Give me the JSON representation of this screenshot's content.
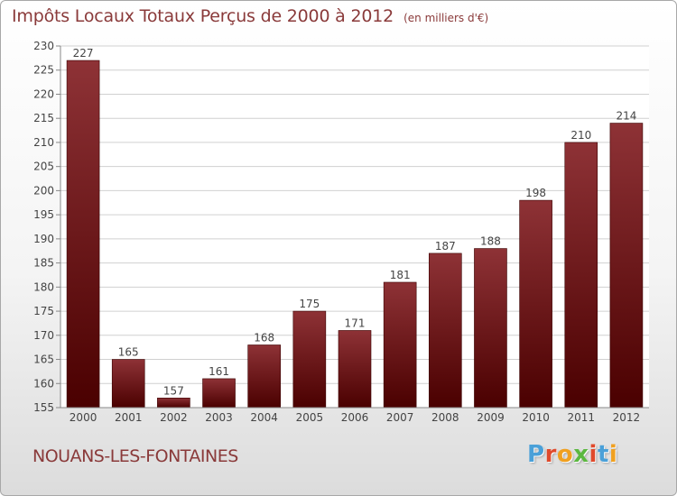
{
  "header": {
    "title": "Impôts Locaux Totaux Perçus de 2000 à 2012",
    "subtitle": "(en milliers d'€)"
  },
  "footer": {
    "commune": "NOUANS-LES-FONTAINES",
    "logo_text": "Proxiti"
  },
  "colors": {
    "title": "#8a3a3a",
    "bar_top": "#8e3236",
    "bar_bottom": "#4a0000",
    "grid": "#d0d0d0",
    "logo_letters": [
      "#4aa0d8",
      "#e04a2c",
      "#f0a020",
      "#5bb840",
      "#e04a2c",
      "#4aa0d8",
      "#f0a020"
    ]
  },
  "chart_data": {
    "type": "bar",
    "categories": [
      "2000",
      "2001",
      "2002",
      "2003",
      "2004",
      "2005",
      "2006",
      "2007",
      "2008",
      "2009",
      "2010",
      "2011",
      "2012"
    ],
    "values": [
      227,
      165,
      157,
      161,
      168,
      175,
      171,
      181,
      187,
      188,
      198,
      210,
      214
    ],
    "ylim": [
      155,
      230
    ],
    "yticks": [
      155,
      160,
      165,
      170,
      175,
      180,
      185,
      190,
      195,
      200,
      205,
      210,
      215,
      220,
      225,
      230
    ],
    "grid": true
  }
}
